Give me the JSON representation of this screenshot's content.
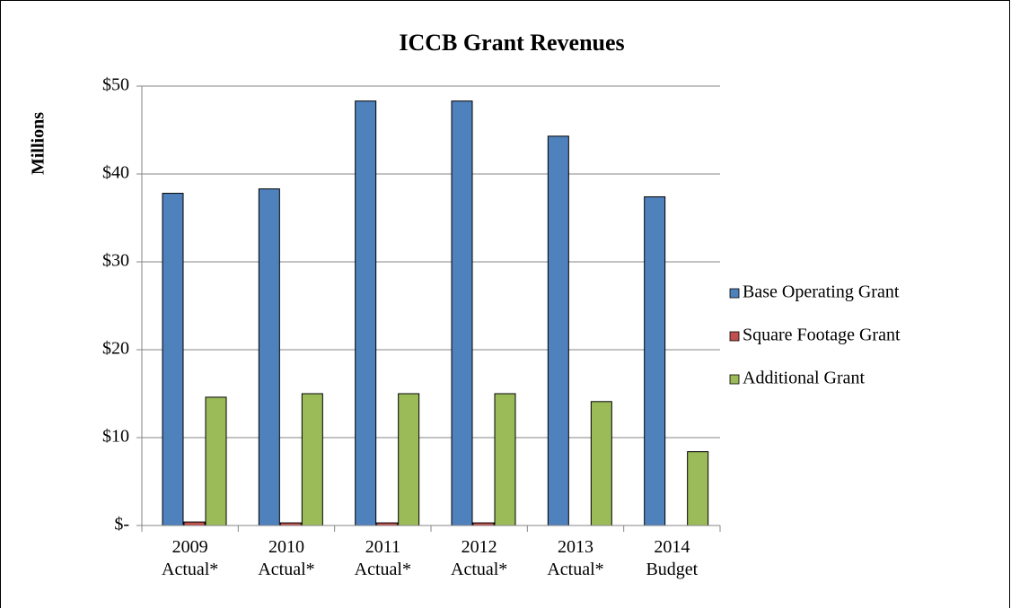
{
  "chart_data": {
    "type": "bar",
    "title": "ICCB Grant Revenues",
    "y_label": "Millions",
    "categories": [
      "2009 Actual*",
      "2010 Actual*",
      "2011 Actual*",
      "2012 Actual*",
      "2013 Actual*",
      "2014 Budget"
    ],
    "series": [
      {
        "name": "Base Operating Grant",
        "color": "#4f81bd",
        "values": [
          37.8,
          38.3,
          48.3,
          48.3,
          44.3,
          37.4
        ]
      },
      {
        "name": "Square Footage Grant",
        "color": "#c0504d",
        "values": [
          0.4,
          0.3,
          0.3,
          0.3,
          0,
          0
        ]
      },
      {
        "name": "Additional Grant",
        "color": "#9bbb59",
        "values": [
          14.6,
          15.0,
          15.0,
          15.0,
          14.1,
          8.4
        ]
      }
    ],
    "ylim": [
      0,
      50
    ],
    "yticks": [
      {
        "value": 0,
        "label": "$-"
      },
      {
        "value": 10,
        "label": "$10"
      },
      {
        "value": 20,
        "label": "$20"
      },
      {
        "value": 30,
        "label": "$30"
      },
      {
        "value": 40,
        "label": "$40"
      },
      {
        "value": 50,
        "label": "$50"
      }
    ],
    "grid": true,
    "legend": "right"
  }
}
